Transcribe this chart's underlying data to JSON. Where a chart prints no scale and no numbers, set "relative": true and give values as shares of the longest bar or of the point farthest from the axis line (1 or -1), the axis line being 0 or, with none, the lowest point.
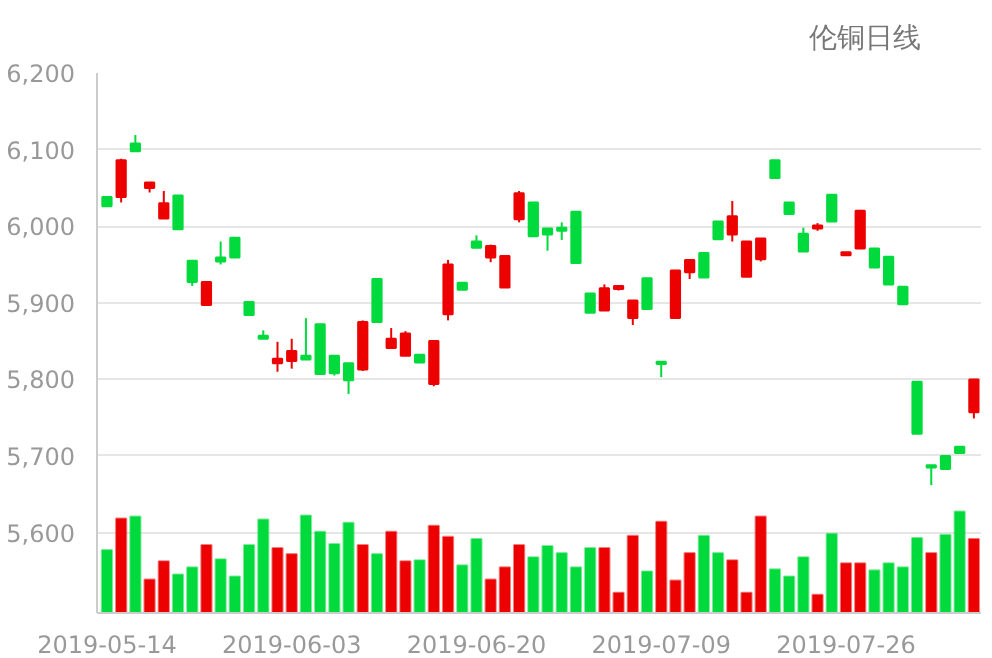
{
  "chart_data": [
    {
      "type": "candlestick",
      "title": "伦铜日线",
      "categories": [
        "2019-05-14",
        null,
        null,
        null,
        null,
        null,
        null,
        null,
        null,
        null,
        null,
        null,
        null,
        "2019-06-03",
        null,
        null,
        null,
        null,
        null,
        null,
        null,
        null,
        null,
        null,
        null,
        null,
        "2019-06-20",
        null,
        null,
        null,
        null,
        null,
        null,
        null,
        null,
        null,
        null,
        null,
        null,
        "2019-07-09",
        null,
        null,
        null,
        null,
        null,
        null,
        null,
        null,
        null,
        null,
        null,
        null,
        "2019-07-26",
        null,
        null,
        null,
        null,
        null,
        null,
        null,
        null,
        null
      ],
      "ohlc": [
        [
          6038,
          6038,
          6026,
          6026
        ],
        [
          6038,
          6088,
          6031,
          6086
        ],
        [
          6108,
          6119,
          6098,
          6098
        ],
        [
          6050,
          6057,
          6044,
          6057
        ],
        [
          6010,
          6046,
          6010,
          6030
        ],
        [
          6040,
          6040,
          5996,
          5996
        ],
        [
          5955,
          5955,
          5922,
          5927
        ],
        [
          5897,
          5927,
          5897,
          5927
        ],
        [
          5959,
          5980,
          5950,
          5954
        ],
        [
          5985,
          5985,
          5959,
          5959
        ],
        [
          5901,
          5901,
          5884,
          5884
        ],
        [
          5857,
          5864,
          5853,
          5853
        ],
        [
          5821,
          5849,
          5810,
          5827
        ],
        [
          5824,
          5853,
          5814,
          5837
        ],
        [
          5831,
          5880,
          5826,
          5826
        ],
        [
          5872,
          5872,
          5807,
          5807
        ],
        [
          5831,
          5831,
          5805,
          5808
        ],
        [
          5821,
          5821,
          5781,
          5799
        ],
        [
          5813,
          5877,
          5811,
          5875
        ],
        [
          5931,
          5931,
          5875,
          5875
        ],
        [
          5841,
          5867,
          5841,
          5853
        ],
        [
          5831,
          5863,
          5831,
          5860
        ],
        [
          5832,
          5832,
          5822,
          5822
        ],
        [
          5794,
          5850,
          5791,
          5850
        ],
        [
          5885,
          5956,
          5877,
          5950
        ],
        [
          5926,
          5926,
          5917,
          5917
        ],
        [
          5980,
          5988,
          5972,
          5972
        ],
        [
          5959,
          5976,
          5953,
          5974
        ],
        [
          5920,
          5961,
          5920,
          5961
        ],
        [
          6009,
          6046,
          6005,
          6043
        ],
        [
          6031,
          6031,
          5987,
          5987
        ],
        [
          5997,
          5997,
          5968,
          5989
        ],
        [
          5998,
          6005,
          5982,
          5994
        ],
        [
          6019,
          6019,
          5952,
          5952
        ],
        [
          5912,
          5912,
          5887,
          5887
        ],
        [
          5890,
          5924,
          5890,
          5919
        ],
        [
          5918,
          5922,
          5916,
          5922
        ],
        [
          5880,
          5903,
          5871,
          5903
        ],
        [
          5932,
          5932,
          5892,
          5892
        ],
        [
          5823,
          5823,
          5803,
          5820
        ],
        [
          5880,
          5942,
          5880,
          5942
        ],
        [
          5940,
          5956,
          5931,
          5956
        ],
        [
          5965,
          5965,
          5933,
          5933
        ],
        [
          6006,
          6006,
          5983,
          5983
        ],
        [
          5989,
          6033,
          5980,
          6013
        ],
        [
          5934,
          5980,
          5934,
          5980
        ],
        [
          5957,
          5984,
          5954,
          5984
        ],
        [
          6086,
          6086,
          6063,
          6063
        ],
        [
          6031,
          6031,
          6016,
          6016
        ],
        [
          5990,
          5998,
          5967,
          5967
        ],
        [
          5997,
          6004,
          5994,
          6001
        ],
        [
          6041,
          6041,
          6006,
          6006
        ],
        [
          5962,
          5966,
          5962,
          5966
        ],
        [
          5971,
          6020,
          5971,
          6020
        ],
        [
          5971,
          5971,
          5946,
          5946
        ],
        [
          5960,
          5960,
          5924,
          5924
        ],
        [
          5921,
          5921,
          5898,
          5898
        ],
        [
          5797,
          5797,
          5729,
          5729
        ],
        [
          5688,
          5688,
          5662,
          5685
        ],
        [
          5700,
          5700,
          5683,
          5683
        ],
        [
          5712,
          5712,
          5704,
          5704
        ],
        [
          5757,
          5800,
          5749,
          5800
        ]
      ],
      "colors": [
        "#00da3c",
        "#ec0000",
        "#00da3c",
        "#ec0000",
        "#ec0000",
        "#00da3c",
        "#00da3c",
        "#ec0000",
        "#00da3c",
        "#00da3c",
        "#00da3c",
        "#00da3c",
        "#ec0000",
        "#ec0000",
        "#00da3c",
        "#00da3c",
        "#00da3c",
        "#00da3c",
        "#ec0000",
        "#00da3c",
        "#ec0000",
        "#ec0000",
        "#00da3c",
        "#ec0000",
        "#ec0000",
        "#00da3c",
        "#00da3c",
        "#ec0000",
        "#ec0000",
        "#ec0000",
        "#00da3c",
        "#00da3c",
        "#00da3c",
        "#00da3c",
        "#00da3c",
        "#ec0000",
        "#ec0000",
        "#ec0000",
        "#00da3c",
        "#00da3c",
        "#ec0000",
        "#ec0000",
        "#00da3c",
        "#00da3c",
        "#ec0000",
        "#ec0000",
        "#ec0000",
        "#00da3c",
        "#00da3c",
        "#00da3c",
        "#ec0000",
        "#00da3c",
        "#ec0000",
        "#ec0000",
        "#00da3c",
        "#00da3c",
        "#00da3c",
        "#00da3c",
        "#00da3c",
        "#00da3c",
        "#00da3c",
        "#ec0000"
      ],
      "ylim": [
        5495,
        6200
      ],
      "yticks": [
        {
          "value": 5600,
          "label": "5,600"
        },
        {
          "value": 5700,
          "label": "5,700"
        },
        {
          "value": 5800,
          "label": "5,800"
        },
        {
          "value": 5900,
          "label": "5,900"
        },
        {
          "value": 6000,
          "label": "6,000"
        },
        {
          "value": 6100,
          "label": "6,100"
        },
        {
          "value": 6200,
          "label": "6,200"
        }
      ],
      "grid": "y"
    },
    {
      "type": "bar",
      "relative": true,
      "categories": [
        null,
        null,
        null,
        null,
        null,
        null,
        null,
        null,
        null,
        null,
        null,
        null,
        null,
        null,
        null,
        null,
        null,
        null,
        null,
        null,
        null,
        null,
        null,
        null,
        null,
        null,
        null,
        null,
        null,
        null,
        null,
        null,
        null,
        null,
        null,
        null,
        null,
        null,
        null,
        null,
        null,
        null,
        null,
        null,
        null,
        null,
        null,
        null,
        null,
        null,
        null,
        null,
        null,
        null,
        null,
        null,
        null,
        null,
        null,
        null,
        null,
        null
      ],
      "values": [
        0.62,
        0.93,
        0.95,
        0.33,
        0.51,
        0.38,
        0.45,
        0.67,
        0.53,
        0.36,
        0.67,
        0.92,
        0.64,
        0.58,
        0.96,
        0.8,
        0.68,
        0.89,
        0.67,
        0.58,
        0.8,
        0.51,
        0.52,
        0.86,
        0.75,
        0.47,
        0.73,
        0.33,
        0.45,
        0.67,
        0.55,
        0.66,
        0.59,
        0.45,
        0.64,
        0.64,
        0.2,
        0.76,
        0.41,
        0.9,
        0.32,
        0.59,
        0.76,
        0.59,
        0.52,
        0.2,
        0.95,
        0.43,
        0.36,
        0.55,
        0.18,
        0.78,
        0.49,
        0.49,
        0.42,
        0.49,
        0.45,
        0.74,
        0.59,
        0.77,
        1,
        0.73
      ],
      "colors": [
        "#00da3c",
        "#ec0000",
        "#00da3c",
        "#ec0000",
        "#ec0000",
        "#00da3c",
        "#00da3c",
        "#ec0000",
        "#00da3c",
        "#00da3c",
        "#00da3c",
        "#00da3c",
        "#ec0000",
        "#ec0000",
        "#00da3c",
        "#00da3c",
        "#00da3c",
        "#00da3c",
        "#ec0000",
        "#00da3c",
        "#ec0000",
        "#ec0000",
        "#00da3c",
        "#ec0000",
        "#ec0000",
        "#00da3c",
        "#00da3c",
        "#ec0000",
        "#ec0000",
        "#ec0000",
        "#00da3c",
        "#00da3c",
        "#00da3c",
        "#00da3c",
        "#00da3c",
        "#ec0000",
        "#ec0000",
        "#ec0000",
        "#00da3c",
        "#ec0000",
        "#ec0000",
        "#ec0000",
        "#00da3c",
        "#00da3c",
        "#ec0000",
        "#ec0000",
        "#ec0000",
        "#00da3c",
        "#00da3c",
        "#00da3c",
        "#ec0000",
        "#00da3c",
        "#ec0000",
        "#ec0000",
        "#00da3c",
        "#00da3c",
        "#00da3c",
        "#00da3c",
        "#ec0000",
        "#00da3c",
        "#00da3c",
        "#ec0000"
      ]
    }
  ]
}
